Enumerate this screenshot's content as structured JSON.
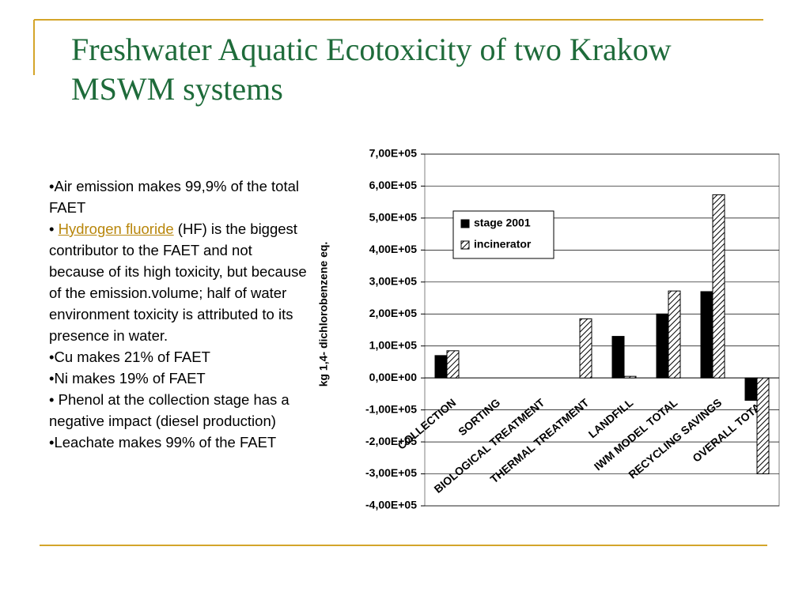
{
  "title": "Freshwater Aquatic Ecotoxicity of two Krakow MSWM systems",
  "bullets": [
    "•Air emission makes 99,9% of the total FAET",
    {
      "prefix": "• ",
      "link": "Hydrogen fluoride",
      "rest": " (HF) is the biggest contributor to the FAET and not because of its high toxicity, but because of the emission.volume; half of water environment toxicity is attributed to its presence in water."
    },
    "•Cu makes 21% of  FAET",
    "•Ni makes 19% of FAET",
    "• Phenol at the collection stage has a negative impact (diesel production)",
    "•Leachate makes 99% of the FAET"
  ],
  "chart_data": {
    "type": "bar",
    "y_label": "kg 1,4- dichlorobenzene eq.",
    "categories": [
      "COLLECTION",
      "SORTING",
      "BIOLOGICAL TREATMENT",
      "THERMAL TREATMENT",
      "LANDFILL",
      "IWM MODEL TOTAL",
      "RECYCLING SAVINGS",
      "OVERALL TOTAL"
    ],
    "series": [
      {
        "name": "stage 2001",
        "color": "#000000",
        "values": [
          70000,
          0,
          0,
          0,
          130000,
          200000,
          270000,
          -70000
        ]
      },
      {
        "name": "incinerator",
        "color": "hatch",
        "values": [
          85000,
          0,
          0,
          185000,
          5000,
          272000,
          573000,
          -300000
        ]
      }
    ],
    "ylim": [
      -400000,
      700000
    ],
    "yticks": [
      {
        "value": -400000,
        "label": "-4,00E+05"
      },
      {
        "value": -300000,
        "label": "-3,00E+05"
      },
      {
        "value": -200000,
        "label": "-2,00E+05"
      },
      {
        "value": -100000,
        "label": "-1,00E+05"
      },
      {
        "value": 0,
        "label": "0,00E+00"
      },
      {
        "value": 100000,
        "label": "1,00E+05"
      },
      {
        "value": 200000,
        "label": "2,00E+05"
      },
      {
        "value": 300000,
        "label": "3,00E+05"
      },
      {
        "value": 400000,
        "label": "4,00E+05"
      },
      {
        "value": 500000,
        "label": "5,00E+05"
      },
      {
        "value": 600000,
        "label": "6,00E+05"
      },
      {
        "value": 700000,
        "label": "7,00E+05"
      }
    ],
    "grid": true,
    "legend": "upper-left"
  }
}
